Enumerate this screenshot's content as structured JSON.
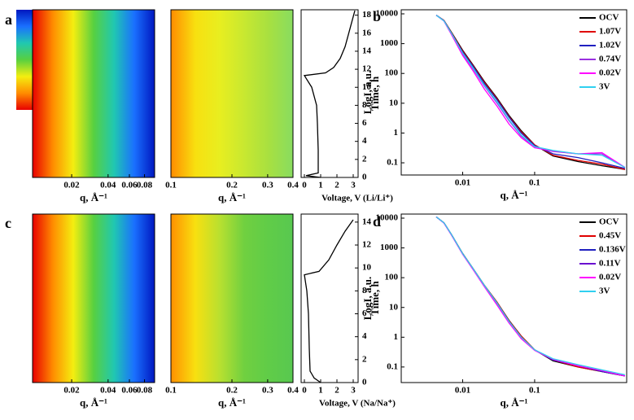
{
  "chart_data": [
    {
      "type": "heatmap",
      "panel_label": "a",
      "xlabel": "q, Å⁻¹",
      "log_x": true,
      "xlim": [
        0.0095,
        0.097
      ],
      "xticks": [
        0.02,
        0.04,
        0.06,
        0.08
      ],
      "colors": [
        "#e80000",
        "#ff8c00",
        "#f4ee10",
        "#58d040",
        "#20c8b0",
        "#1a70ff",
        "#0018c0"
      ],
      "colorbar": true
    },
    {
      "type": "heatmap",
      "xlabel": "q, Å⁻¹",
      "log_x": true,
      "xlim": [
        0.1,
        0.4
      ],
      "xticks": [
        0.1,
        0.2,
        0.3,
        0.4
      ],
      "colors": [
        "#ff8c00",
        "#f8e010",
        "#e8ee20",
        "#c8e830",
        "#a8e040",
        "#88dc60"
      ]
    },
    {
      "type": "line",
      "xlabel": "Voltage, V (Li/Li⁺)",
      "ylabel": "Time, h",
      "xlim": [
        -0.2,
        3.3
      ],
      "xticks": [
        0,
        1,
        2,
        3
      ],
      "ylim": [
        0,
        18.6
      ],
      "yticks": [
        0,
        2,
        4,
        6,
        8,
        10,
        12,
        14,
        16,
        18
      ],
      "y_axis_side": "right",
      "series": [
        {
          "color": "#000000",
          "x": [
            1.0,
            0.1,
            0.85,
            0.85,
            0.8,
            0.75,
            0.45,
            0,
            1.3,
            1.8,
            2.2,
            2.5,
            2.8,
            3.1
          ],
          "values": [
            0,
            0.2,
            0.5,
            3,
            6,
            8,
            10,
            11.3,
            11.6,
            12.2,
            13.2,
            14.5,
            16.5,
            18.5
          ]
        }
      ]
    },
    {
      "type": "line",
      "panel_label": "b",
      "xlabel": "q, Å⁻¹",
      "ylabel": "LogI, a.u.",
      "log_x": true,
      "log_y": true,
      "x": [
        0.0043,
        0.0055,
        0.007,
        0.01,
        0.014,
        0.02,
        0.03,
        0.044,
        0.065,
        0.1,
        0.18,
        0.4,
        0.86,
        1.8
      ],
      "xlim": [
        0.0014,
        1.9
      ],
      "xticks": [
        0.01,
        0.1
      ],
      "ylim": [
        0.039,
        13700
      ],
      "yticks": [
        0.1,
        1,
        10,
        100,
        1000,
        10000
      ],
      "legend": "top-right",
      "series": [
        {
          "name": "OCV",
          "color": "#000000",
          "values": [
            9000,
            6000,
            2400,
            600,
            190,
            54,
            15,
            3.9,
            1.2,
            0.4,
            0.17,
            0.11,
            0.08,
            0.06
          ]
        },
        {
          "name": "1.07V",
          "color": "#e00000",
          "values": [
            9000,
            6000,
            2300,
            560,
            180,
            50,
            14,
            3.6,
            1.1,
            0.4,
            0.18,
            0.12,
            0.09,
            0.06
          ]
        },
        {
          "name": "1.02V",
          "color": "#2020c0",
          "values": [
            9000,
            5900,
            2200,
            520,
            170,
            46,
            13,
            3.4,
            1.0,
            0.38,
            0.2,
            0.15,
            0.1,
            0.065
          ]
        },
        {
          "name": "0.74V",
          "color": "#9a30e0",
          "values": [
            9000,
            5800,
            2100,
            450,
            140,
            38,
            10,
            2.6,
            0.8,
            0.33,
            0.24,
            0.2,
            0.2,
            0.07
          ]
        },
        {
          "name": "0.02V",
          "color": "#ff00ff",
          "values": [
            9000,
            5700,
            2000,
            400,
            120,
            30,
            8,
            2.0,
            0.7,
            0.32,
            0.25,
            0.2,
            0.22,
            0.07
          ]
        },
        {
          "name": "3V",
          "color": "#30d0f0",
          "values": [
            9000,
            5800,
            2200,
            480,
            150,
            40,
            11,
            2.8,
            0.85,
            0.35,
            0.26,
            0.2,
            0.18,
            0.07
          ]
        }
      ]
    },
    {
      "type": "heatmap",
      "panel_label": "c",
      "xlabel": "q, Å⁻¹",
      "log_x": true,
      "xlim": [
        0.0095,
        0.097
      ],
      "xticks": [
        0.02,
        0.04,
        0.06,
        0.08
      ],
      "colors": [
        "#e80000",
        "#ff8c00",
        "#f4ee10",
        "#58d040",
        "#20c8b0",
        "#1a70ff",
        "#0018c0"
      ]
    },
    {
      "type": "heatmap",
      "xlabel": "q, Å⁻¹",
      "log_x": true,
      "xlim": [
        0.1,
        0.4
      ],
      "xticks": [
        0.1,
        0.2,
        0.3,
        0.4
      ],
      "colors": [
        "#ff9000",
        "#f8e010",
        "#b8e030",
        "#70d040",
        "#60cc48",
        "#58c850"
      ]
    },
    {
      "type": "line",
      "xlabel": "Voltage, V (Na/Na⁺)",
      "ylabel": "Time, h",
      "xlim": [
        -0.2,
        3.3
      ],
      "xticks": [
        0,
        1,
        2,
        3
      ],
      "ylim": [
        0,
        14.7
      ],
      "yticks": [
        0,
        2,
        4,
        6,
        8,
        10,
        12,
        14
      ],
      "y_axis_side": "right",
      "series": [
        {
          "color": "#000000",
          "x": [
            1.0,
            0.6,
            0.35,
            0.3,
            0.25,
            0.15,
            0,
            0.9,
            1.5,
            2.0,
            2.5,
            3.0
          ],
          "values": [
            0,
            0.4,
            1,
            3,
            6,
            8,
            9.4,
            9.7,
            10.7,
            12,
            13.2,
            14.2
          ]
        }
      ]
    },
    {
      "type": "line",
      "panel_label": "d",
      "xlabel": "q, Å⁻¹",
      "ylabel": "LogI, a.u.",
      "log_x": true,
      "log_y": true,
      "x": [
        0.0043,
        0.0055,
        0.007,
        0.01,
        0.014,
        0.02,
        0.03,
        0.044,
        0.065,
        0.1,
        0.18,
        0.4,
        0.86,
        1.8
      ],
      "xlim": [
        0.0014,
        1.9
      ],
      "xticks": [
        0.01,
        0.1
      ],
      "ylim": [
        0.03,
        13700
      ],
      "yticks": [
        0.1,
        1,
        10,
        100,
        1000,
        10000
      ],
      "legend": "top-right",
      "series": [
        {
          "name": "OCV",
          "color": "#000000",
          "values": [
            11000,
            7000,
            2800,
            650,
            200,
            56,
            15,
            3.7,
            1.1,
            0.38,
            0.16,
            0.1,
            0.07,
            0.05
          ]
        },
        {
          "name": "0.45V",
          "color": "#e00000",
          "values": [
            11000,
            7000,
            2800,
            640,
            200,
            55,
            15,
            3.6,
            1.1,
            0.38,
            0.17,
            0.1,
            0.07,
            0.05
          ]
        },
        {
          "name": "0.136V",
          "color": "#2020c0",
          "values": [
            11000,
            6900,
            2750,
            630,
            195,
            54,
            14,
            3.4,
            1.0,
            0.37,
            0.17,
            0.11,
            0.07,
            0.05
          ]
        },
        {
          "name": "0.11V",
          "color": "#6a10d0",
          "values": [
            11000,
            6900,
            2700,
            620,
            190,
            52,
            13,
            3.2,
            0.95,
            0.37,
            0.18,
            0.11,
            0.075,
            0.05
          ]
        },
        {
          "name": "0.02V",
          "color": "#ff00ff",
          "values": [
            11000,
            6800,
            2700,
            610,
            185,
            50,
            12,
            3.0,
            0.9,
            0.36,
            0.18,
            0.11,
            0.075,
            0.05
          ]
        },
        {
          "name": "3V",
          "color": "#30d0f0",
          "values": [
            11000,
            7000,
            2800,
            640,
            200,
            55,
            14,
            3.4,
            1.0,
            0.38,
            0.19,
            0.12,
            0.08,
            0.055
          ]
        }
      ]
    }
  ]
}
